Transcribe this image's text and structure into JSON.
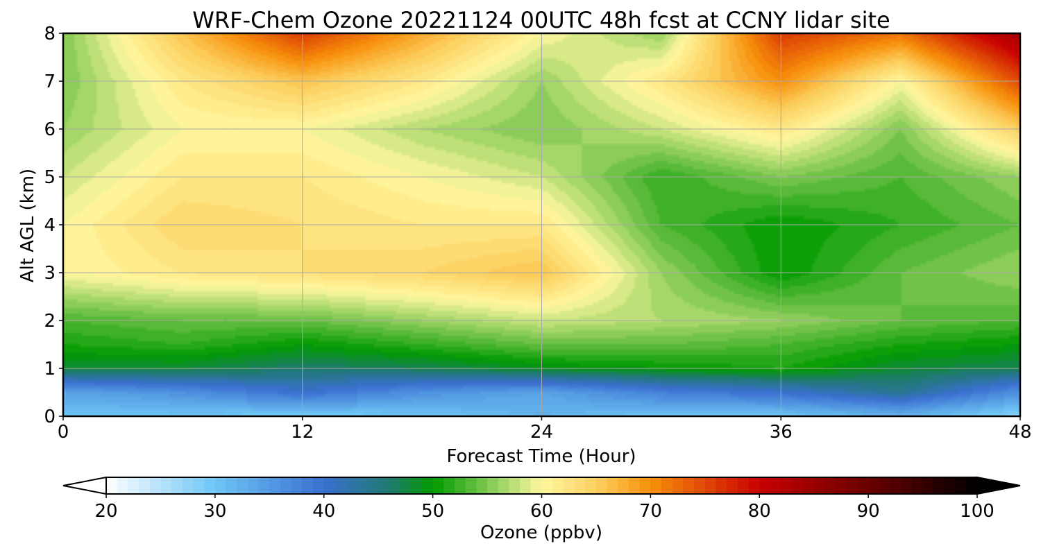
{
  "chart_data": {
    "type": "heatmap",
    "title": "WRF-Chem Ozone  20221124 00UTC 48h fcst at CCNY lidar site",
    "xlabel": "Forecast Time (Hour)",
    "ylabel": "Alt AGL (km)",
    "xlim": [
      0,
      48
    ],
    "ylim": [
      0,
      8
    ],
    "xticks": [
      0,
      12,
      24,
      36,
      48
    ],
    "yticks": [
      0,
      1,
      2,
      3,
      4,
      5,
      6,
      7,
      8
    ],
    "grid": true,
    "colorbar": {
      "label": "Ozone  (ppbv)",
      "orientation": "horizontal",
      "extend": "both",
      "range": [
        20,
        100
      ],
      "ticks": [
        20,
        30,
        40,
        50,
        60,
        70,
        80,
        90,
        100
      ],
      "stops": [
        {
          "v": 20,
          "c": "#ffffff"
        },
        {
          "v": 30,
          "c": "#6ec6f5"
        },
        {
          "v": 40,
          "c": "#3a6fd0"
        },
        {
          "v": 46,
          "c": "#1f7a70"
        },
        {
          "v": 50,
          "c": "#009a00"
        },
        {
          "v": 55,
          "c": "#7ec850"
        },
        {
          "v": 60,
          "c": "#fff8a0"
        },
        {
          "v": 65,
          "c": "#fcd060"
        },
        {
          "v": 70,
          "c": "#f7900a"
        },
        {
          "v": 80,
          "c": "#c80000"
        },
        {
          "v": 90,
          "c": "#6a0000"
        },
        {
          "v": 100,
          "c": "#000000"
        }
      ]
    },
    "grid_data": {
      "x": [
        0,
        6,
        12,
        18,
        24,
        30,
        36,
        42,
        48
      ],
      "y": [
        0,
        0.5,
        1,
        1.5,
        2,
        3,
        4,
        5,
        6,
        7,
        8
      ],
      "z": [
        [
          30,
          30,
          29,
          30,
          32,
          30,
          30,
          32,
          28
        ],
        [
          34,
          36,
          40,
          36,
          34,
          38,
          40,
          44,
          36
        ],
        [
          48,
          48,
          46,
          47,
          49,
          50,
          51,
          48,
          47
        ],
        [
          51,
          52,
          50,
          52,
          54,
          54,
          53,
          51,
          50
        ],
        [
          53,
          54,
          54,
          56,
          58,
          57,
          56,
          54,
          53
        ],
        [
          60,
          62,
          63,
          64,
          66,
          56,
          50,
          54,
          56
        ],
        [
          60,
          64,
          63,
          62,
          62,
          53,
          50,
          52,
          54
        ],
        [
          58,
          62,
          62,
          60,
          58,
          52,
          55,
          53,
          56
        ],
        [
          56,
          60,
          60,
          57,
          55,
          58,
          62,
          55,
          65
        ],
        [
          55,
          62,
          66,
          62,
          56,
          62,
          70,
          60,
          75
        ],
        [
          55,
          66,
          76,
          68,
          60,
          56,
          76,
          72,
          84
        ]
      ]
    }
  }
}
